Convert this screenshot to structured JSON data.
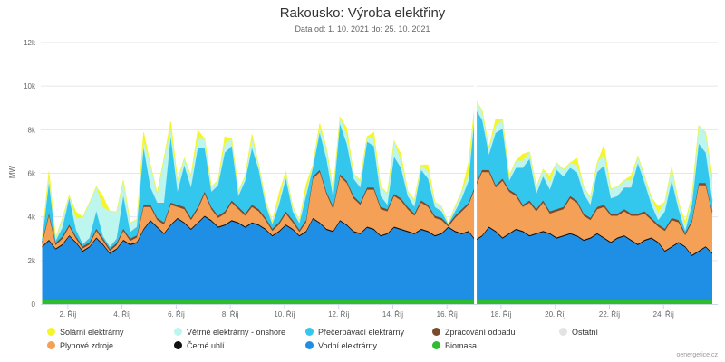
{
  "title": "Rakousko: Výroba elektřiny",
  "subtitle": "Data od: 1. 10. 2021 do: 25. 10. 2021",
  "credit": "oenergetice.cz",
  "chart_data": {
    "type": "area",
    "stacked": true,
    "ylabel": "MW",
    "ylim": [
      0,
      12000
    ],
    "y_ticks": [
      0,
      2000,
      4000,
      6000,
      8000,
      10000,
      12000
    ],
    "y_tick_labels": [
      "0",
      "2k",
      "4k",
      "6k",
      "8k",
      "10k",
      "12k"
    ],
    "x_tick_days": [
      2,
      4,
      6,
      8,
      10,
      12,
      14,
      16,
      18,
      20,
      22,
      24
    ],
    "x_tick_labels": [
      "2. Říj",
      "4. Říj",
      "6. Říj",
      "8. Říj",
      "10. Říj",
      "12. Říj",
      "14. Říj",
      "16. Říj",
      "18. Říj",
      "20. Říj",
      "22. Říj",
      "24. Říj"
    ],
    "x_start_day": 1.05,
    "x_end_day": 25.85,
    "x_step_days": 0.25,
    "gap_at_day": 17.05,
    "grid": true,
    "legend_position": "bottom",
    "series": [
      {
        "name": "Biomasa",
        "color": "#2ebd2e",
        "values": [
          200,
          200,
          200,
          200,
          200,
          200,
          200,
          200,
          200,
          200,
          200,
          200,
          200,
          200,
          200,
          200,
          200,
          200,
          200,
          200,
          200,
          200,
          200,
          200,
          200,
          200,
          200,
          200,
          200,
          200,
          200,
          200,
          200,
          200,
          200,
          200,
          200,
          200,
          200,
          200,
          200,
          200,
          200,
          200,
          200,
          200,
          200,
          200,
          200,
          200,
          200,
          200,
          200,
          200,
          200,
          200,
          200,
          200,
          200,
          200,
          200,
          200,
          200,
          200,
          200,
          200,
          200,
          200,
          200,
          200,
          200,
          200,
          200,
          200,
          200,
          200,
          200,
          200,
          200,
          200,
          200,
          200,
          200,
          200,
          200,
          200,
          200,
          200,
          200,
          200,
          200,
          200,
          200,
          200,
          200,
          200,
          200,
          200,
          200,
          200
        ]
      },
      {
        "name": "Vodní elektrárny",
        "color": "#1f8fe6",
        "values": [
          2400,
          2700,
          2300,
          2500,
          2900,
          2600,
          2200,
          2400,
          2800,
          2500,
          2100,
          2300,
          2700,
          2500,
          2600,
          3200,
          3600,
          3300,
          3000,
          3400,
          3700,
          3500,
          3200,
          3500,
          3800,
          3600,
          3300,
          3400,
          3600,
          3500,
          3300,
          3500,
          3400,
          3200,
          2900,
          3100,
          3400,
          3200,
          2900,
          3100,
          3700,
          3500,
          3200,
          3100,
          3600,
          3400,
          3100,
          3000,
          3300,
          3200,
          2900,
          3000,
          3300,
          3200,
          3100,
          3000,
          3200,
          3100,
          2900,
          3000,
          3300,
          3100,
          3000,
          3100,
          2700,
          2900,
          3300,
          3100,
          2800,
          3000,
          3200,
          3100,
          2900,
          3000,
          3100,
          3000,
          2800,
          2900,
          3000,
          2900,
          2700,
          2800,
          3000,
          2800,
          2600,
          2800,
          2900,
          2700,
          2500,
          2700,
          2800,
          2600,
          2200,
          2400,
          2600,
          2400,
          2000,
          2200,
          2400,
          2100
        ]
      },
      {
        "name": "Černé uhlí",
        "color": "#111111",
        "values": [
          50,
          50,
          50,
          50,
          50,
          50,
          50,
          50,
          50,
          50,
          50,
          50,
          50,
          50,
          50,
          50,
          50,
          50,
          50,
          50,
          50,
          50,
          50,
          50,
          50,
          50,
          50,
          50,
          50,
          50,
          50,
          50,
          50,
          50,
          50,
          50,
          50,
          50,
          50,
          50,
          50,
          50,
          50,
          50,
          50,
          50,
          50,
          50,
          50,
          50,
          50,
          50,
          50,
          50,
          50,
          50,
          50,
          50,
          50,
          50,
          50,
          50,
          50,
          50,
          50,
          50,
          50,
          50,
          50,
          50,
          50,
          50,
          50,
          50,
          50,
          50,
          50,
          50,
          50,
          50,
          50,
          50,
          50,
          50,
          50,
          50,
          50,
          50,
          50,
          50,
          50,
          50,
          50,
          50,
          50,
          50,
          50,
          50,
          50,
          50
        ]
      },
      {
        "name": "Plynové zdroje",
        "color": "#f5a057",
        "values": [
          100,
          1100,
          150,
          250,
          400,
          150,
          100,
          80,
          300,
          150,
          80,
          150,
          400,
          150,
          200,
          1000,
          600,
          300,
          400,
          900,
          500,
          600,
          400,
          600,
          1000,
          500,
          400,
          500,
          800,
          600,
          500,
          700,
          600,
          400,
          200,
          300,
          500,
          300,
          150,
          400,
          1800,
          2300,
          1600,
          1000,
          2000,
          1900,
          1500,
          1300,
          1700,
          1800,
          1200,
          1000,
          1400,
          1300,
          1000,
          800,
          1200,
          1100,
          800,
          600,
          0,
          600,
          1000,
          1200,
          2400,
          2900,
          2500,
          2000,
          2600,
          1900,
          1500,
          1100,
          1500,
          1000,
          1300,
          900,
          1200,
          1200,
          1600,
          1500,
          1100,
          800,
          1100,
          1400,
          1200,
          1000,
          1100,
          1100,
          1300,
          1200,
          800,
          700,
          900,
          1200,
          900,
          500,
          1500,
          3000,
          2800,
          1800
        ]
      },
      {
        "name": "Zpracování odpadu",
        "color": "#7a4a2a",
        "values": [
          100,
          100,
          100,
          100,
          100,
          100,
          100,
          100,
          100,
          100,
          100,
          100,
          100,
          100,
          100,
          100,
          100,
          100,
          100,
          100,
          100,
          100,
          100,
          100,
          100,
          100,
          100,
          100,
          100,
          100,
          100,
          100,
          100,
          100,
          100,
          100,
          100,
          100,
          100,
          100,
          100,
          100,
          100,
          100,
          100,
          100,
          100,
          100,
          100,
          100,
          100,
          100,
          100,
          100,
          100,
          100,
          100,
          100,
          100,
          100,
          100,
          100,
          100,
          100,
          100,
          100,
          100,
          100,
          100,
          100,
          100,
          100,
          100,
          100,
          100,
          100,
          100,
          100,
          100,
          100,
          100,
          100,
          100,
          100,
          100,
          100,
          100,
          100,
          100,
          100,
          100,
          100,
          100,
          100,
          100,
          100,
          100,
          100,
          100,
          100
        ]
      },
      {
        "name": "Přečerpávací elektrárny",
        "color": "#33c7ee",
        "values": [
          100,
          1400,
          100,
          400,
          1200,
          300,
          100,
          200,
          800,
          100,
          100,
          200,
          1500,
          300,
          400,
          2600,
          800,
          700,
          900,
          3000,
          600,
          1900,
          1400,
          2700,
          2000,
          700,
          1400,
          2700,
          2500,
          500,
          1500,
          2600,
          1800,
          600,
          200,
          800,
          1500,
          400,
          300,
          1100,
          400,
          1700,
          1500,
          400,
          2300,
          1700,
          800,
          700,
          2100,
          1900,
          500,
          200,
          1700,
          1400,
          500,
          300,
          1400,
          1200,
          400,
          300,
          0,
          200,
          500,
          1000,
          3500,
          2300,
          700,
          2400,
          2300,
          400,
          1200,
          1700,
          1900,
          700,
          1100,
          1000,
          1800,
          1400,
          1300,
          1300,
          900,
          600,
          1600,
          1800,
          700,
          800,
          1000,
          1200,
          2300,
          1300,
          600,
          200,
          800,
          1700,
          500,
          100,
          700,
          1800,
          1400,
          500
        ]
      },
      {
        "name": "Ostatní",
        "color": "#e3e3e3",
        "values": [
          30,
          30,
          30,
          30,
          30,
          30,
          30,
          30,
          30,
          30,
          30,
          30,
          30,
          30,
          30,
          30,
          30,
          30,
          30,
          30,
          30,
          30,
          30,
          30,
          30,
          30,
          30,
          30,
          30,
          30,
          30,
          30,
          30,
          30,
          30,
          30,
          30,
          30,
          30,
          30,
          30,
          30,
          30,
          30,
          30,
          30,
          30,
          30,
          30,
          30,
          30,
          30,
          30,
          30,
          30,
          30,
          30,
          30,
          30,
          30,
          30,
          30,
          30,
          30,
          30,
          30,
          30,
          30,
          30,
          30,
          30,
          30,
          30,
          30,
          30,
          30,
          30,
          30,
          30,
          30,
          30,
          30,
          30,
          30,
          30,
          30,
          30,
          30,
          30,
          30,
          30,
          30,
          30,
          30,
          30,
          30,
          30,
          30,
          30,
          30
        ]
      },
      {
        "name": "Větrné elektrárny - onshore",
        "color": "#bdf5ef",
        "values": [
          50,
          200,
          100,
          400,
          100,
          500,
          1200,
          1600,
          1100,
          1300,
          1600,
          1200,
          700,
          400,
          300,
          300,
          1000,
          400,
          2000,
          300,
          500,
          300,
          500,
          400,
          400,
          200,
          200,
          400,
          300,
          200,
          200,
          400,
          200,
          200,
          100,
          200,
          300,
          200,
          100,
          200,
          100,
          200,
          500,
          300,
          300,
          400,
          200,
          300,
          200,
          300,
          400,
          500,
          700,
          300,
          200,
          300,
          200,
          300,
          200,
          200,
          0,
          200,
          300,
          300,
          400,
          400,
          300,
          300,
          400,
          200,
          300,
          300,
          300,
          300,
          300,
          300,
          300,
          300,
          200,
          300,
          300,
          300,
          400,
          500,
          400,
          400,
          300,
          300,
          300,
          300,
          300,
          300,
          400,
          600,
          300,
          200,
          400,
          800,
          900,
          800
        ]
      },
      {
        "name": "Solární elektrárny",
        "color": "#f5f52a",
        "values": [
          0,
          300,
          0,
          0,
          0,
          300,
          0,
          0,
          0,
          500,
          0,
          0,
          0,
          0,
          0,
          400,
          0,
          0,
          0,
          400,
          0,
          0,
          0,
          400,
          0,
          0,
          0,
          300,
          0,
          0,
          0,
          200,
          0,
          0,
          0,
          300,
          0,
          0,
          0,
          300,
          0,
          200,
          0,
          0,
          0,
          300,
          0,
          0,
          0,
          300,
          0,
          0,
          0,
          300,
          0,
          0,
          0,
          300,
          0,
          0,
          0,
          0,
          0,
          500,
          0,
          0,
          0,
          300,
          0,
          0,
          0,
          300,
          0,
          0,
          0,
          300,
          0,
          0,
          0,
          300,
          0,
          0,
          0,
          400,
          0,
          0,
          0,
          200,
          0,
          0,
          0,
          300,
          0,
          0,
          0,
          200,
          0,
          0,
          0,
          300
        ]
      }
    ]
  },
  "legend": [
    {
      "label": "Solární elektrárny",
      "color": "#f5f52a"
    },
    {
      "label": "Větrné elektrárny - onshore",
      "color": "#bdf5ef"
    },
    {
      "label": "Přečerpávací elektrárny",
      "color": "#33c7ee"
    },
    {
      "label": "Zpracování odpadu",
      "color": "#7a4a2a"
    },
    {
      "label": "Ostatní",
      "color": "#e3e3e3"
    },
    {
      "label": "Plynové zdroje",
      "color": "#f5a057"
    },
    {
      "label": "Černé uhlí",
      "color": "#111111"
    },
    {
      "label": "Vodní elektrárny",
      "color": "#1f8fe6"
    },
    {
      "label": "Biomasa",
      "color": "#2ebd2e"
    }
  ]
}
